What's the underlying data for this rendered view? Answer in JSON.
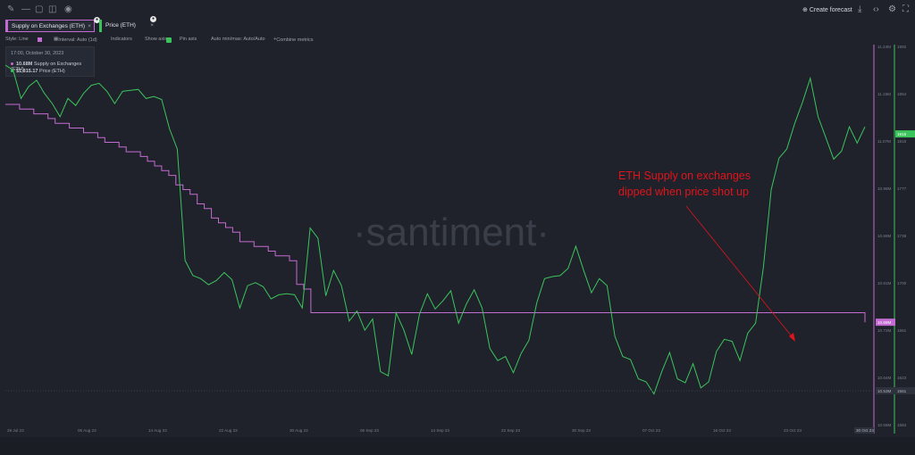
{
  "toolbar": {
    "icons": [
      "pencil-icon",
      "minus-icon",
      "note-icon",
      "camera-icon",
      "eye-icon"
    ],
    "create_forecast": "Create forecast",
    "right_icons": [
      "download-icon",
      "code-icon",
      "gear-icon",
      "fullscreen-icon"
    ]
  },
  "tabs": [
    {
      "label": "Supply on Exchanges (ETH)",
      "color": "#c36bd1"
    },
    {
      "label": "Price (ETH)",
      "color": "#3cc45c"
    }
  ],
  "settings": {
    "style": "Style: Line",
    "interval": "Interval: Auto (1d)",
    "indicators": "Indicators",
    "show_axis": "Show axis",
    "pin_axis": "Pin axis",
    "auto_minmax": "Auto min/max: Auto/Auto",
    "combine": "Combine metrics"
  },
  "tooltip": {
    "date": "17:00, October 30, 2023",
    "supply_value": "10.68M",
    "supply_label": "Supply on Exchanges (ETH)",
    "price_value": "$1,815.17",
    "price_label": "Price (ETH)"
  },
  "watermark": "·santiment·",
  "annotation": {
    "line1": "ETH Supply on exchanges",
    "line2": "dipped when price shot up",
    "color": "#e0141a"
  },
  "chart_data": {
    "type": "line",
    "x_ticks": [
      "29 Jul 23",
      "06 Aug 23",
      "14 Aug 23",
      "22 Aug 23",
      "30 Aug 23",
      "06 Sep 23",
      "14 Sep 23",
      "22 Sep 23",
      "30 Sep 23",
      "07 Oct 23",
      "16 Oct 23",
      "23 Oct 23"
    ],
    "x_last_label": "30 Oct 23",
    "supply_axis": {
      "ticks": [
        "11.24M",
        "11.15M",
        "11.07M",
        "10.98M",
        "10.89M",
        "10.81M",
        "10.72M",
        "10.64M",
        "10.55M"
      ],
      "current": "10.68M",
      "min_label": "10.53M",
      "ylim": [
        10.49,
        11.27
      ]
    },
    "price_axis": {
      "ticks": [
        "1892",
        "1854",
        "1815",
        "1777",
        "1738",
        "1700",
        "1661",
        "1623",
        "1584"
      ],
      "current": "1815",
      "min_label": "1551",
      "ylim": [
        1540,
        1905
      ]
    },
    "series": [
      {
        "name": "Supply on Exchanges (ETH)",
        "color": "#c36bd1",
        "axis": "supply",
        "values": [
          11.14,
          11.14,
          11.13,
          11.13,
          11.12,
          11.12,
          11.11,
          11.1,
          11.1,
          11.09,
          11.09,
          11.08,
          11.08,
          11.07,
          11.06,
          11.06,
          11.05,
          11.04,
          11.04,
          11.03,
          11.02,
          11.01,
          11.0,
          10.99,
          10.97,
          10.96,
          10.95,
          10.93,
          10.92,
          10.9,
          10.89,
          10.88,
          10.87,
          10.85,
          10.85,
          10.84,
          10.84,
          10.83,
          10.82,
          10.82,
          10.81,
          10.76,
          10.75,
          10.7,
          10.7,
          10.7,
          10.7,
          10.7,
          10.7,
          10.7,
          10.7,
          10.7,
          10.7,
          10.7,
          10.7,
          10.7,
          10.7,
          10.7,
          10.7,
          10.7,
          10.7,
          10.7,
          10.7,
          10.7,
          10.7,
          10.7,
          10.7,
          10.7,
          10.7,
          10.7,
          10.7,
          10.7,
          10.7,
          10.7,
          10.7,
          10.7,
          10.7,
          10.7,
          10.7,
          10.7,
          10.7,
          10.7,
          10.7,
          10.7,
          10.7,
          10.7,
          10.7,
          10.7,
          10.7,
          10.7,
          10.7,
          10.7,
          10.7,
          10.7,
          10.7,
          10.7,
          10.7,
          10.7,
          10.7,
          10.7,
          10.7,
          10.7,
          10.7,
          10.7,
          10.7,
          10.7,
          10.7,
          10.7,
          10.7,
          10.7,
          10.7,
          10.7,
          10.7,
          10.7,
          10.7,
          10.7,
          10.7,
          10.7,
          10.7,
          10.7,
          10.7,
          10.68
        ]
      },
      {
        "name": "Price (ETH)",
        "color": "#3cc45c",
        "axis": "price",
        "values": [
          1883,
          1878,
          1850,
          1862,
          1868,
          1855,
          1845,
          1832,
          1850,
          1843,
          1855,
          1863,
          1865,
          1857,
          1845,
          1857,
          1858,
          1859,
          1850,
          1852,
          1849,
          1820,
          1800,
          1690,
          1675,
          1672,
          1666,
          1670,
          1678,
          1671,
          1643,
          1665,
          1668,
          1664,
          1652,
          1656,
          1657,
          1656,
          1643,
          1722,
          1712,
          1655,
          1680,
          1665,
          1630,
          1640,
          1621,
          1632,
          1580,
          1576,
          1638,
          1621,
          1597,
          1637,
          1657,
          1642,
          1650,
          1660,
          1628,
          1647,
          1661,
          1643,
          1603,
          1591,
          1595,
          1579,
          1598,
          1611,
          1648,
          1672,
          1674,
          1675,
          1682,
          1704,
          1680,
          1658,
          1672,
          1665,
          1615,
          1595,
          1592,
          1573,
          1570,
          1558,
          1580,
          1599,
          1573,
          1569,
          1588,
          1564,
          1570,
          1600,
          1612,
          1610,
          1591,
          1618,
          1628,
          1683,
          1760,
          1791,
          1800,
          1825,
          1846,
          1870,
          1832,
          1811,
          1790,
          1798,
          1822,
          1806,
          1822
        ]
      }
    ],
    "grid": false
  }
}
